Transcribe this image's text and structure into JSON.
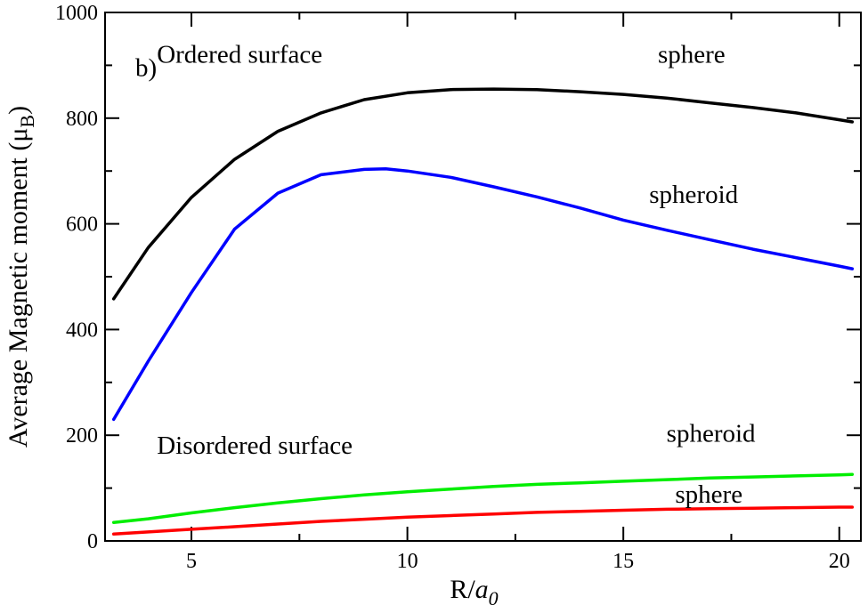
{
  "chart_data": {
    "type": "line",
    "panel_label": "b)",
    "xlabel": "R/",
    "xlabel_italic": "a",
    "xlabel_sub": "0",
    "ylabel": "Average Magnetic moment (μ",
    "ylabel_sub": "B",
    "ylabel_close": ")",
    "xlim": [
      3,
      20.5
    ],
    "ylim": [
      0,
      1000
    ],
    "xticks": [
      5,
      10,
      15,
      20
    ],
    "yticks": [
      0,
      200,
      400,
      600,
      800,
      1000
    ],
    "xminor": [
      7.5,
      12.5,
      17.5
    ],
    "yminor": [
      100,
      300,
      500,
      700,
      900
    ],
    "grid": false,
    "annotations": [
      {
        "text": "Ordered surface",
        "x": 4.2,
        "y": 905
      },
      {
        "text": "sphere",
        "x": 15.8,
        "y": 905
      },
      {
        "text": "b)",
        "x": 3.7,
        "y": 880
      },
      {
        "text": "spheroid",
        "x": 15.6,
        "y": 640
      },
      {
        "text": "Disordered surface",
        "x": 4.2,
        "y": 165
      },
      {
        "text": "spheroid",
        "x": 16.0,
        "y": 188
      },
      {
        "text": "sphere",
        "x": 16.2,
        "y": 72
      }
    ],
    "series": [
      {
        "name": "Ordered surface - sphere",
        "color": "#000000",
        "x": [
          3.2,
          4,
          5,
          6,
          7,
          8,
          9,
          10,
          11,
          12,
          13,
          14,
          15,
          16,
          17,
          18,
          19,
          20,
          20.3
        ],
        "y": [
          458,
          555,
          650,
          722,
          775,
          810,
          835,
          848,
          854,
          855,
          854,
          850,
          845,
          838,
          829,
          820,
          810,
          797,
          793
        ]
      },
      {
        "name": "Ordered surface - spheroid",
        "color": "#0000ff",
        "x": [
          3.2,
          4,
          5,
          6,
          7,
          8,
          9,
          9.5,
          10,
          11,
          12,
          13,
          14,
          15,
          16,
          17,
          18,
          19,
          20,
          20.3
        ],
        "y": [
          230,
          340,
          470,
          590,
          658,
          693,
          703,
          704,
          700,
          688,
          670,
          651,
          630,
          607,
          588,
          570,
          552,
          536,
          520,
          515
        ]
      },
      {
        "name": "Disordered surface - spheroid",
        "color": "#00ee00",
        "x": [
          3.2,
          4,
          5,
          6,
          7,
          8,
          9,
          10,
          11,
          12,
          13,
          14,
          15,
          16,
          17,
          18,
          19,
          20,
          20.3
        ],
        "y": [
          35,
          42,
          53,
          63,
          72,
          80,
          87,
          93,
          98,
          103,
          107,
          110,
          113,
          116,
          119,
          121,
          123,
          125,
          126
        ]
      },
      {
        "name": "Disordered surface - sphere",
        "color": "#ff0000",
        "x": [
          3.2,
          4,
          5,
          6,
          7,
          8,
          9,
          10,
          11,
          12,
          13,
          14,
          15,
          16,
          17,
          18,
          19,
          20,
          20.3
        ],
        "y": [
          13,
          17,
          22,
          27,
          32,
          37,
          41,
          45,
          48,
          51,
          54,
          56,
          58,
          60,
          61,
          62,
          63,
          64,
          64
        ]
      }
    ]
  }
}
